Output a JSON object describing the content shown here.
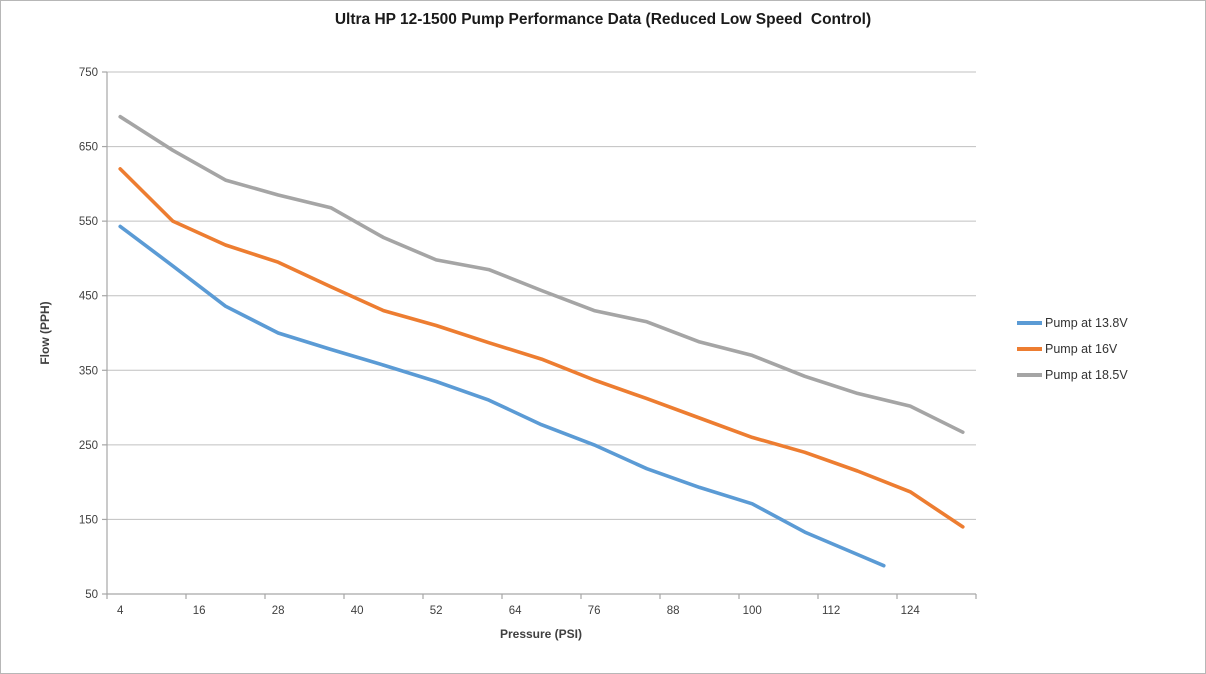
{
  "chart_data": {
    "type": "line",
    "title": "Ultra HP 12-1500 Pump Performance Data (Reduced Low Speed  Control)",
    "xlabel": "Pressure (PSI)",
    "ylabel": "Flow (PPH)",
    "x_axis_type": "category",
    "x_tick_labels": [
      4,
      16,
      28,
      40,
      52,
      64,
      76,
      88,
      100,
      112,
      124
    ],
    "y_ticks": [
      50,
      150,
      250,
      350,
      450,
      550,
      650,
      750
    ],
    "xlim": [
      2,
      134
    ],
    "ylim": [
      50,
      750
    ],
    "grid": "horizontal",
    "legend_position": "right",
    "colors": {
      "grid": "#c0c0c0",
      "axis": "#a6a6a6",
      "tick_label": "#404040",
      "title": "#1a1a1a"
    },
    "series": [
      {
        "name": "Pump at 13.8V",
        "color": "#5b9bd5",
        "x": [
          4,
          12,
          20,
          28,
          36,
          44,
          52,
          60,
          68,
          76,
          84,
          92,
          100,
          108,
          116,
          120
        ],
        "values": [
          543,
          490,
          436,
          400,
          378,
          357,
          335,
          310,
          277,
          250,
          218,
          193,
          171,
          133,
          103,
          88
        ]
      },
      {
        "name": "Pump at 16V",
        "color": "#ed7d31",
        "x": [
          4,
          12,
          20,
          28,
          36,
          44,
          52,
          60,
          68,
          76,
          84,
          92,
          100,
          108,
          116,
          124,
          132
        ],
        "values": [
          620,
          550,
          518,
          495,
          462,
          430,
          410,
          387,
          365,
          337,
          312,
          286,
          260,
          240,
          215,
          187,
          140
        ]
      },
      {
        "name": "Pump at 18.5V",
        "color": "#a5a5a5",
        "x": [
          4,
          12,
          20,
          28,
          36,
          44,
          52,
          60,
          68,
          76,
          84,
          92,
          100,
          108,
          116,
          124,
          132
        ],
        "values": [
          690,
          645,
          605,
          585,
          568,
          528,
          498,
          485,
          457,
          430,
          415,
          388,
          370,
          342,
          319,
          302,
          267
        ]
      }
    ]
  }
}
